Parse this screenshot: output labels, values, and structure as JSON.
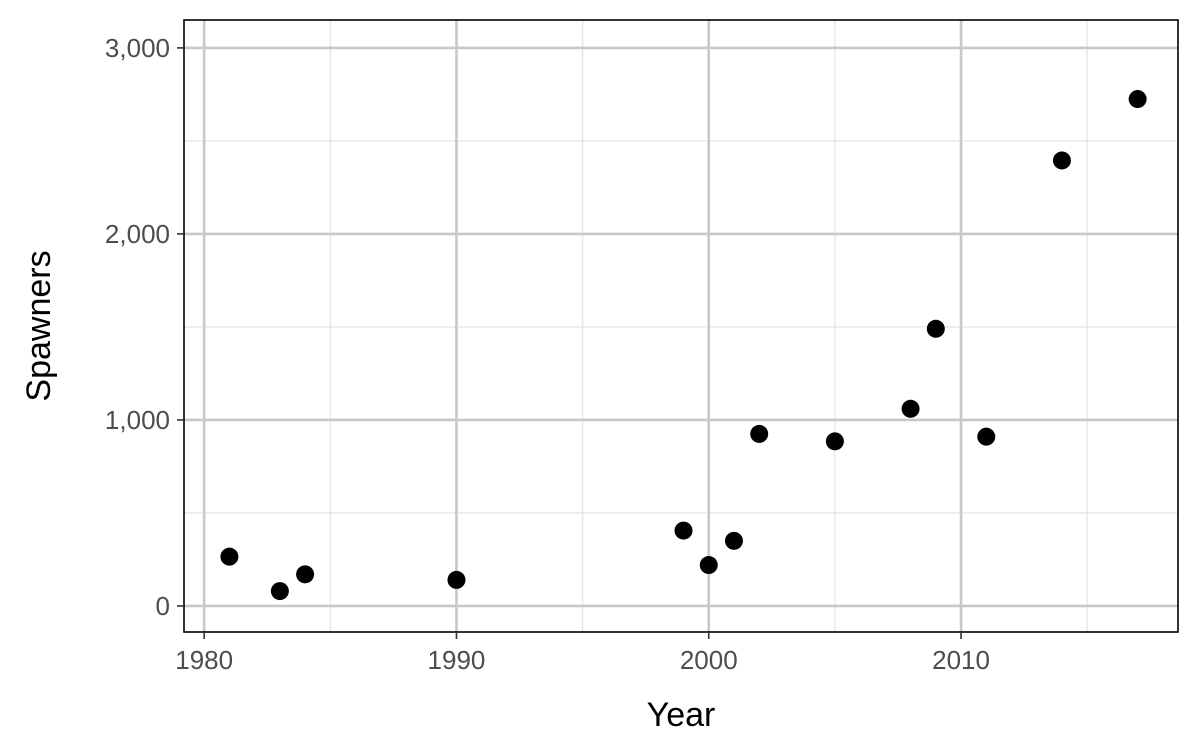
{
  "chart_data": {
    "type": "scatter",
    "title": "",
    "xlabel": "Year",
    "ylabel": "Spawners",
    "xlim": [
      1979.2,
      2018.6
    ],
    "ylim": [
      -140,
      3150
    ],
    "x_ticks": [
      1980,
      1990,
      2000,
      2010
    ],
    "x_tick_labels": [
      "1980",
      "1990",
      "2000",
      "2010"
    ],
    "x_minor_ticks": [
      1985,
      1995,
      2005,
      2015
    ],
    "y_ticks": [
      0,
      1000,
      2000,
      3000
    ],
    "y_tick_labels": [
      "0",
      "1,000",
      "2,000",
      "3,000"
    ],
    "y_minor_ticks": [
      500,
      1500,
      2500
    ],
    "grid": true,
    "colors": {
      "point": "#000000",
      "grid_major": "#c8c8c8",
      "grid_minor": "#e6e6e6",
      "panel_border": "#000000",
      "background": "#ffffff"
    },
    "series": [
      {
        "x": [
          1981,
          1983,
          1984,
          1990,
          1999,
          2000,
          2001,
          2002,
          2005,
          2008,
          2009,
          2011,
          2014,
          2017
        ],
        "y": [
          265,
          80,
          170,
          140,
          405,
          220,
          350,
          925,
          885,
          1060,
          1490,
          910,
          2395,
          2725
        ]
      }
    ]
  }
}
